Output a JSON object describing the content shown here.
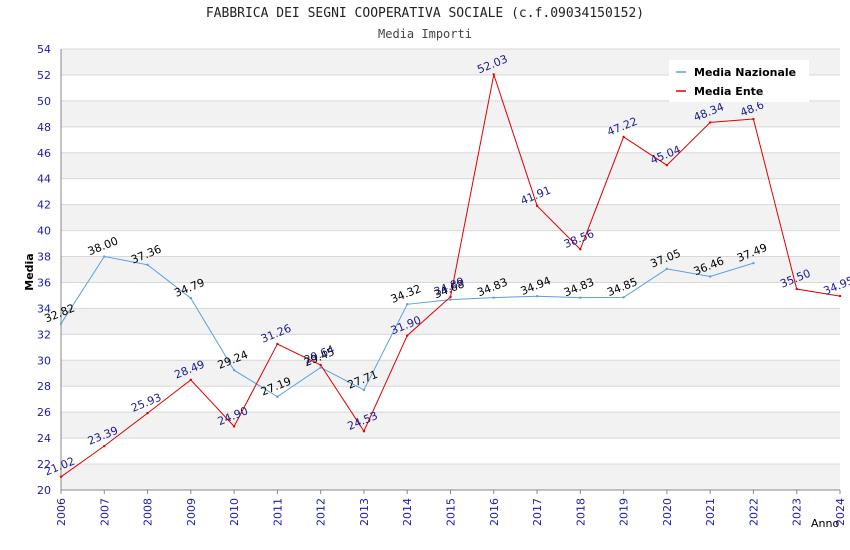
{
  "chart_data": {
    "type": "line",
    "title": "FABBRICA DEI SEGNI COOPERATIVA SOCIALE (c.f.09034150152)",
    "subtitle": "Media Importi",
    "xlabel": "Anno",
    "ylabel": "Media",
    "ylim": [
      20,
      54
    ],
    "ystep": 2,
    "xlim": [
      2006,
      2024
    ],
    "legend_position": "top-right",
    "grid": true,
    "series": [
      {
        "name": "Media Nazionale",
        "color": "#5aa0e0",
        "label_color": "#000000",
        "x": [
          2006,
          2007,
          2008,
          2009,
          2010,
          2011,
          2012,
          2013,
          2014,
          2015,
          2016,
          2017,
          2018,
          2019,
          2020,
          2021,
          2022
        ],
        "values": [
          32.82,
          38.0,
          37.36,
          34.79,
          29.24,
          27.19,
          29.45,
          27.71,
          34.32,
          34.68,
          34.83,
          34.94,
          34.83,
          34.85,
          37.05,
          36.46,
          37.49
        ],
        "labels": [
          "32.82",
          "38.00",
          "37.36",
          "34.79",
          "29.24",
          "27.19",
          "29.45",
          "27.71",
          "34.32",
          "34.68",
          "34.83",
          "34.94",
          "34.83",
          "34.85",
          "37.05",
          "36.46",
          "37.49"
        ]
      },
      {
        "name": "Media Ente",
        "color": "#e00000",
        "label_color": "#1a1a8c",
        "x": [
          2006,
          2007,
          2008,
          2009,
          2010,
          2011,
          2012,
          2013,
          2014,
          2015,
          2016,
          2017,
          2018,
          2019,
          2020,
          2021,
          2022,
          2023,
          2024
        ],
        "values": [
          21.02,
          23.39,
          25.93,
          28.49,
          24.9,
          31.26,
          29.64,
          24.53,
          31.9,
          34.89,
          52.03,
          41.91,
          38.56,
          47.22,
          45.04,
          48.34,
          48.6,
          35.5,
          34.95
        ],
        "labels": [
          "21.02",
          "23.39",
          "25.93",
          "28.49",
          "24.90",
          "31.26",
          "29.64",
          "24.53",
          "31.90",
          "34.89",
          "52.03",
          "41.91",
          "38.56",
          "47.22",
          "45.04",
          "48.34",
          "48.6",
          "35.50",
          "34.95"
        ]
      }
    ]
  }
}
